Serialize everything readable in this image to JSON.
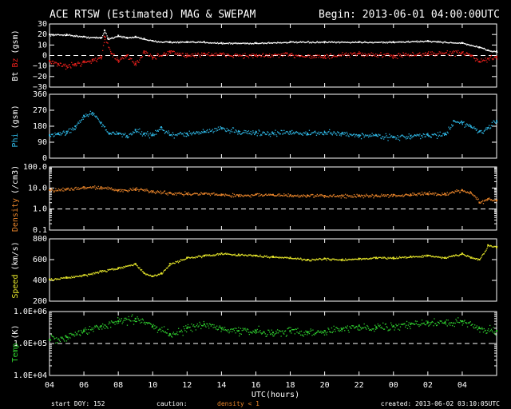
{
  "header": {
    "title": "ACE RTSW (Estimated) MAG & SWEPAM",
    "begin": "Begin: 2013-06-01 04:00:00UTC"
  },
  "footer": {
    "start_doy": "start DOY: 152",
    "caution": "caution:",
    "density_note": "density < 1",
    "created": "created: 2013-06-02 03:10:05UTC"
  },
  "colors": {
    "background": "#000000",
    "frame": "#ffffff",
    "bt": "#ffffff",
    "bz": "#e8201c",
    "phi": "#2fb8e6",
    "density": "#e8842a",
    "speed": "#e6e62a",
    "temp": "#2fcf2f"
  },
  "chart_data": {
    "type": "scatter",
    "xlabel": "UTC(hours)",
    "x_ticks": [
      "04",
      "06",
      "08",
      "10",
      "12",
      "14",
      "16",
      "18",
      "20",
      "22",
      "00",
      "02",
      "04"
    ],
    "x_hours": [
      0,
      26
    ],
    "panels": [
      {
        "id": "mag",
        "ylabel_parts": [
          "Bt",
          "Bz",
          "(gsm)"
        ],
        "ylim": [
          -30,
          30
        ],
        "scale": "linear",
        "ticks": [
          "30",
          "20",
          "10",
          "0",
          "−10",
          "−20",
          "−30"
        ],
        "tick_values": [
          30,
          20,
          10,
          0,
          -10,
          -20,
          -30
        ],
        "dashed_lines": [
          0
        ],
        "series": [
          {
            "name": "Bt",
            "color_key": "bt",
            "x": [
              0,
              1,
              2,
              3,
              3.2,
              3.4,
              4,
              4.5,
              5,
              5.5,
              6,
              7,
              8,
              9,
              10,
              12,
              14,
              16,
              18,
              20,
              22,
              24,
              25,
              25.5,
              26
            ],
            "y": [
              20,
              20,
              18,
              17,
              24,
              16,
              19,
              17,
              18,
              16,
              14,
              13,
              13,
              13,
              12,
              12,
              13,
              13,
              13,
              13,
              14,
              12,
              8,
              5,
              4
            ]
          },
          {
            "name": "Bz",
            "color_key": "bz",
            "x": [
              0,
              0.5,
              1,
              1.5,
              2,
              2.5,
              3,
              3.2,
              3.6,
              4,
              4.5,
              5,
              5.5,
              6,
              7,
              8,
              9,
              10,
              12,
              14,
              16,
              18,
              20,
              22,
              24,
              24.5,
              25,
              25.5,
              26
            ],
            "y": [
              -5,
              -8,
              -10,
              -8,
              -6,
              -4,
              -2,
              18,
              2,
              -5,
              0,
              -8,
              4,
              -2,
              4,
              0,
              2,
              1,
              0,
              1,
              -1,
              2,
              0,
              2,
              3,
              0,
              -6,
              -3,
              -1
            ]
          }
        ]
      },
      {
        "id": "phi",
        "ylabel_parts": [
          "Phi",
          "(gsm)"
        ],
        "ylim": [
          0,
          360
        ],
        "scale": "linear",
        "ticks": [
          "360",
          "270",
          "180",
          "90",
          "0"
        ],
        "tick_values": [
          360,
          270,
          180,
          90,
          0
        ],
        "dashed_lines": [],
        "series": [
          {
            "name": "Phi",
            "color_key": "phi",
            "x": [
              0,
              0.5,
              1,
              1.5,
              2,
              2.5,
              3,
              3.5,
              4,
              4.5,
              5,
              5.5,
              6,
              6.5,
              7,
              8,
              9,
              10,
              11,
              12,
              13,
              14,
              15,
              16,
              17,
              18,
              19,
              20,
              21,
              22,
              23,
              23.5,
              24,
              24.5,
              25,
              25.5,
              26
            ],
            "y": [
              130,
              135,
              150,
              180,
              240,
              255,
              200,
              140,
              140,
              125,
              160,
              140,
              130,
              175,
              130,
              140,
              150,
              170,
              150,
              145,
              140,
              150,
              140,
              145,
              140,
              130,
              130,
              120,
              125,
              130,
              135,
              210,
              200,
              180,
              150,
              170,
              210
            ]
          }
        ]
      },
      {
        "id": "density",
        "ylabel_parts": [
          "Density",
          "(/cm3)"
        ],
        "ylim": [
          0.1,
          100
        ],
        "scale": "log",
        "ticks": [
          "100.0",
          "10.0",
          "1.0",
          "0.1"
        ],
        "tick_values": [
          100,
          10,
          1,
          0.1
        ],
        "dashed_lines": [
          1
        ],
        "series": [
          {
            "name": "Density",
            "color_key": "density",
            "x": [
              0,
              1,
              2,
              3,
              4,
              5,
              6,
              7,
              8,
              9,
              10,
              11,
              12,
              13,
              14,
              15,
              16,
              17,
              18,
              19,
              20,
              21,
              22,
              23,
              24,
              24.5,
              25,
              25.5,
              26
            ],
            "y": [
              8,
              9,
              11,
              11,
              8,
              9,
              7,
              6,
              5.5,
              5.5,
              5,
              4.5,
              5,
              4.8,
              4.5,
              4.5,
              4.3,
              4.5,
              4.2,
              4.5,
              4.8,
              5,
              5.5,
              5.3,
              8,
              6,
              2,
              3,
              2.5
            ]
          }
        ]
      },
      {
        "id": "speed",
        "ylabel_parts": [
          "Speed",
          "(km/s)"
        ],
        "ylim": [
          200,
          800
        ],
        "scale": "linear",
        "ticks": [
          "800",
          "600",
          "400",
          "200"
        ],
        "tick_values": [
          800,
          600,
          400,
          200
        ],
        "dashed_lines": [],
        "series": [
          {
            "name": "Speed",
            "color_key": "speed",
            "x": [
              0,
              1,
              2,
              3,
              4,
              5,
              5.5,
              6,
              6.5,
              7,
              8,
              9,
              10,
              11,
              12,
              13,
              14,
              15,
              16,
              17,
              18,
              19,
              20,
              21,
              22,
              23,
              24,
              24.5,
              25,
              25.5,
              26
            ],
            "y": [
              410,
              430,
              450,
              490,
              520,
              560,
              470,
              440,
              470,
              560,
              620,
              640,
              660,
              650,
              640,
              630,
              620,
              600,
              610,
              600,
              610,
              620,
              620,
              630,
              640,
              620,
              660,
              620,
              600,
              740,
              720
            ]
          }
        ]
      },
      {
        "id": "temp",
        "ylabel_parts": [
          "Temp",
          "(K)"
        ],
        "ylim": [
          10000,
          1000000
        ],
        "scale": "log",
        "ticks": [
          "1.0E+06",
          "1.0E+05",
          "1.0E+04"
        ],
        "tick_values": [
          1000000,
          100000,
          10000
        ],
        "dashed_lines": [
          100000
        ],
        "series": [
          {
            "name": "Temp",
            "color_key": "temp",
            "x": [
              0,
              1,
              2,
              3,
              4,
              5,
              6,
              7,
              8,
              9,
              10,
              11,
              12,
              13,
              14,
              15,
              16,
              17,
              18,
              19,
              20,
              21,
              22,
              23,
              24,
              25,
              26
            ],
            "y": [
              130000,
              160000,
              250000,
              350000,
              500000,
              600000,
              350000,
              200000,
              300000,
              400000,
              300000,
              250000,
              250000,
              220000,
              250000,
              230000,
              250000,
              280000,
              350000,
              330000,
              350000,
              400000,
              450000,
              450000,
              500000,
              300000,
              250000
            ]
          }
        ]
      }
    ]
  }
}
